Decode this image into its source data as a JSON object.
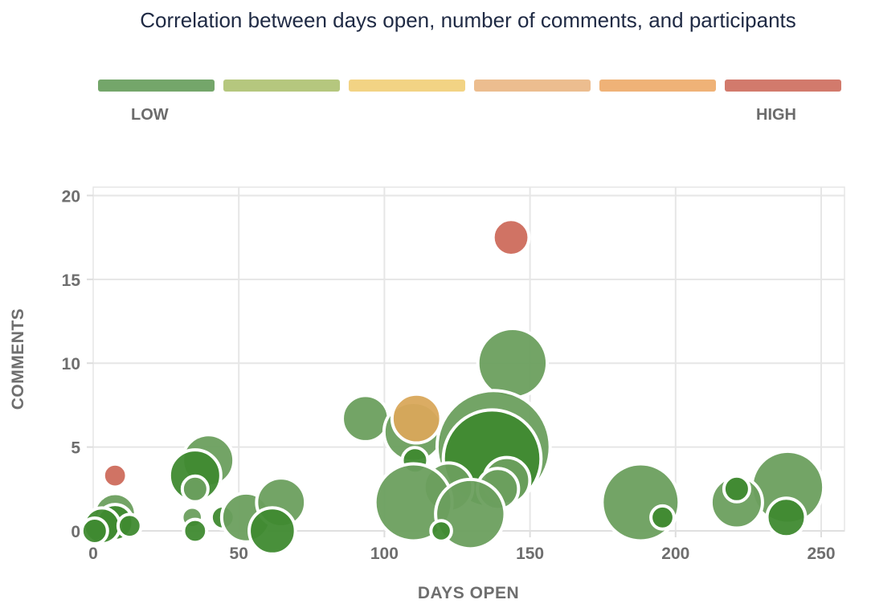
{
  "chart_data": {
    "type": "scatter",
    "title": "Correlation between days open, number of comments, and participants",
    "xlabel": "DAYS OPEN",
    "ylabel": "COMMENTS",
    "xlim": [
      0,
      258
    ],
    "ylim": [
      0,
      20.5
    ],
    "xticks": [
      "0",
      "50",
      "100",
      "150",
      "200",
      "250"
    ],
    "xtick_values": [
      0,
      50,
      100,
      150,
      200,
      250
    ],
    "yticks": [
      "0",
      "5",
      "10",
      "15",
      "20"
    ],
    "ytick_values": [
      0,
      5,
      10,
      15,
      20
    ],
    "grid": true,
    "legend": {
      "low_label": "LOW",
      "high_label": "HIGH",
      "colors": [
        "#74a66a",
        "#b5c77e",
        "#f2d384",
        "#ecbd8f",
        "#efb277",
        "#d27a6c"
      ]
    },
    "series_colors": {
      "green": "#6c9f5e",
      "dark_green": "#3f8a30",
      "yellow": "#d9a85b",
      "red": "#cd6b5c"
    },
    "points": [
      {
        "x": 143.5,
        "y": 17.5,
        "size": 1.4,
        "color": "red"
      },
      {
        "x": 7.5,
        "y": 3.3,
        "size": 0.9,
        "color": "red"
      },
      {
        "x": 144,
        "y": 10,
        "size": 2.7,
        "color": "green"
      },
      {
        "x": 93.5,
        "y": 6.7,
        "size": 1.8,
        "color": "green"
      },
      {
        "x": 110,
        "y": 5.9,
        "size": 2.3,
        "color": "green"
      },
      {
        "x": 111,
        "y": 6.7,
        "size": 1.9,
        "color": "yellow"
      },
      {
        "x": 137.5,
        "y": 5.0,
        "size": 4.4,
        "color": "green"
      },
      {
        "x": 137,
        "y": 4.3,
        "size": 3.8,
        "color": "dark_green"
      },
      {
        "x": 142,
        "y": 3.0,
        "size": 1.8,
        "color": "green"
      },
      {
        "x": 139,
        "y": 2.5,
        "size": 1.6,
        "color": "green"
      },
      {
        "x": 122,
        "y": 2.6,
        "size": 1.9,
        "color": "green"
      },
      {
        "x": 110.5,
        "y": 4.2,
        "size": 1.0,
        "color": "dark_green"
      },
      {
        "x": 110,
        "y": 1.7,
        "size": 3.0,
        "color": "green"
      },
      {
        "x": 129.5,
        "y": 1.0,
        "size": 2.7,
        "color": "green"
      },
      {
        "x": 119.5,
        "y": 0.0,
        "size": 0.8,
        "color": "dark_green"
      },
      {
        "x": 188,
        "y": 1.7,
        "size": 3.0,
        "color": "green"
      },
      {
        "x": 195.5,
        "y": 0.8,
        "size": 0.9,
        "color": "dark_green"
      },
      {
        "x": 238.5,
        "y": 2.6,
        "size": 2.8,
        "color": "green"
      },
      {
        "x": 238,
        "y": 0.8,
        "size": 1.5,
        "color": "dark_green"
      },
      {
        "x": 221,
        "y": 1.7,
        "size": 2.0,
        "color": "green"
      },
      {
        "x": 221,
        "y": 2.5,
        "size": 1.0,
        "color": "dark_green"
      },
      {
        "x": 39.5,
        "y": 4.2,
        "size": 2.0,
        "color": "green"
      },
      {
        "x": 35,
        "y": 3.3,
        "size": 2.0,
        "color": "dark_green"
      },
      {
        "x": 35,
        "y": 2.5,
        "size": 1.0,
        "color": "green"
      },
      {
        "x": 34,
        "y": 0.8,
        "size": 0.8,
        "color": "green"
      },
      {
        "x": 35,
        "y": 0.0,
        "size": 0.9,
        "color": "dark_green"
      },
      {
        "x": 44.5,
        "y": 0.8,
        "size": 0.9,
        "color": "dark_green"
      },
      {
        "x": 52.5,
        "y": 0.8,
        "size": 1.9,
        "color": "green"
      },
      {
        "x": 64.5,
        "y": 1.7,
        "size": 1.9,
        "color": "green"
      },
      {
        "x": 61.5,
        "y": 0.0,
        "size": 1.8,
        "color": "dark_green"
      },
      {
        "x": 7.5,
        "y": 1.0,
        "size": 1.6,
        "color": "green"
      },
      {
        "x": 7.5,
        "y": 0.5,
        "size": 1.4,
        "color": "dark_green"
      },
      {
        "x": 3.0,
        "y": 0.3,
        "size": 1.4,
        "color": "dark_green"
      },
      {
        "x": 12.5,
        "y": 0.3,
        "size": 0.9,
        "color": "dark_green"
      },
      {
        "x": 0.5,
        "y": 0.0,
        "size": 1.0,
        "color": "dark_green"
      }
    ]
  }
}
